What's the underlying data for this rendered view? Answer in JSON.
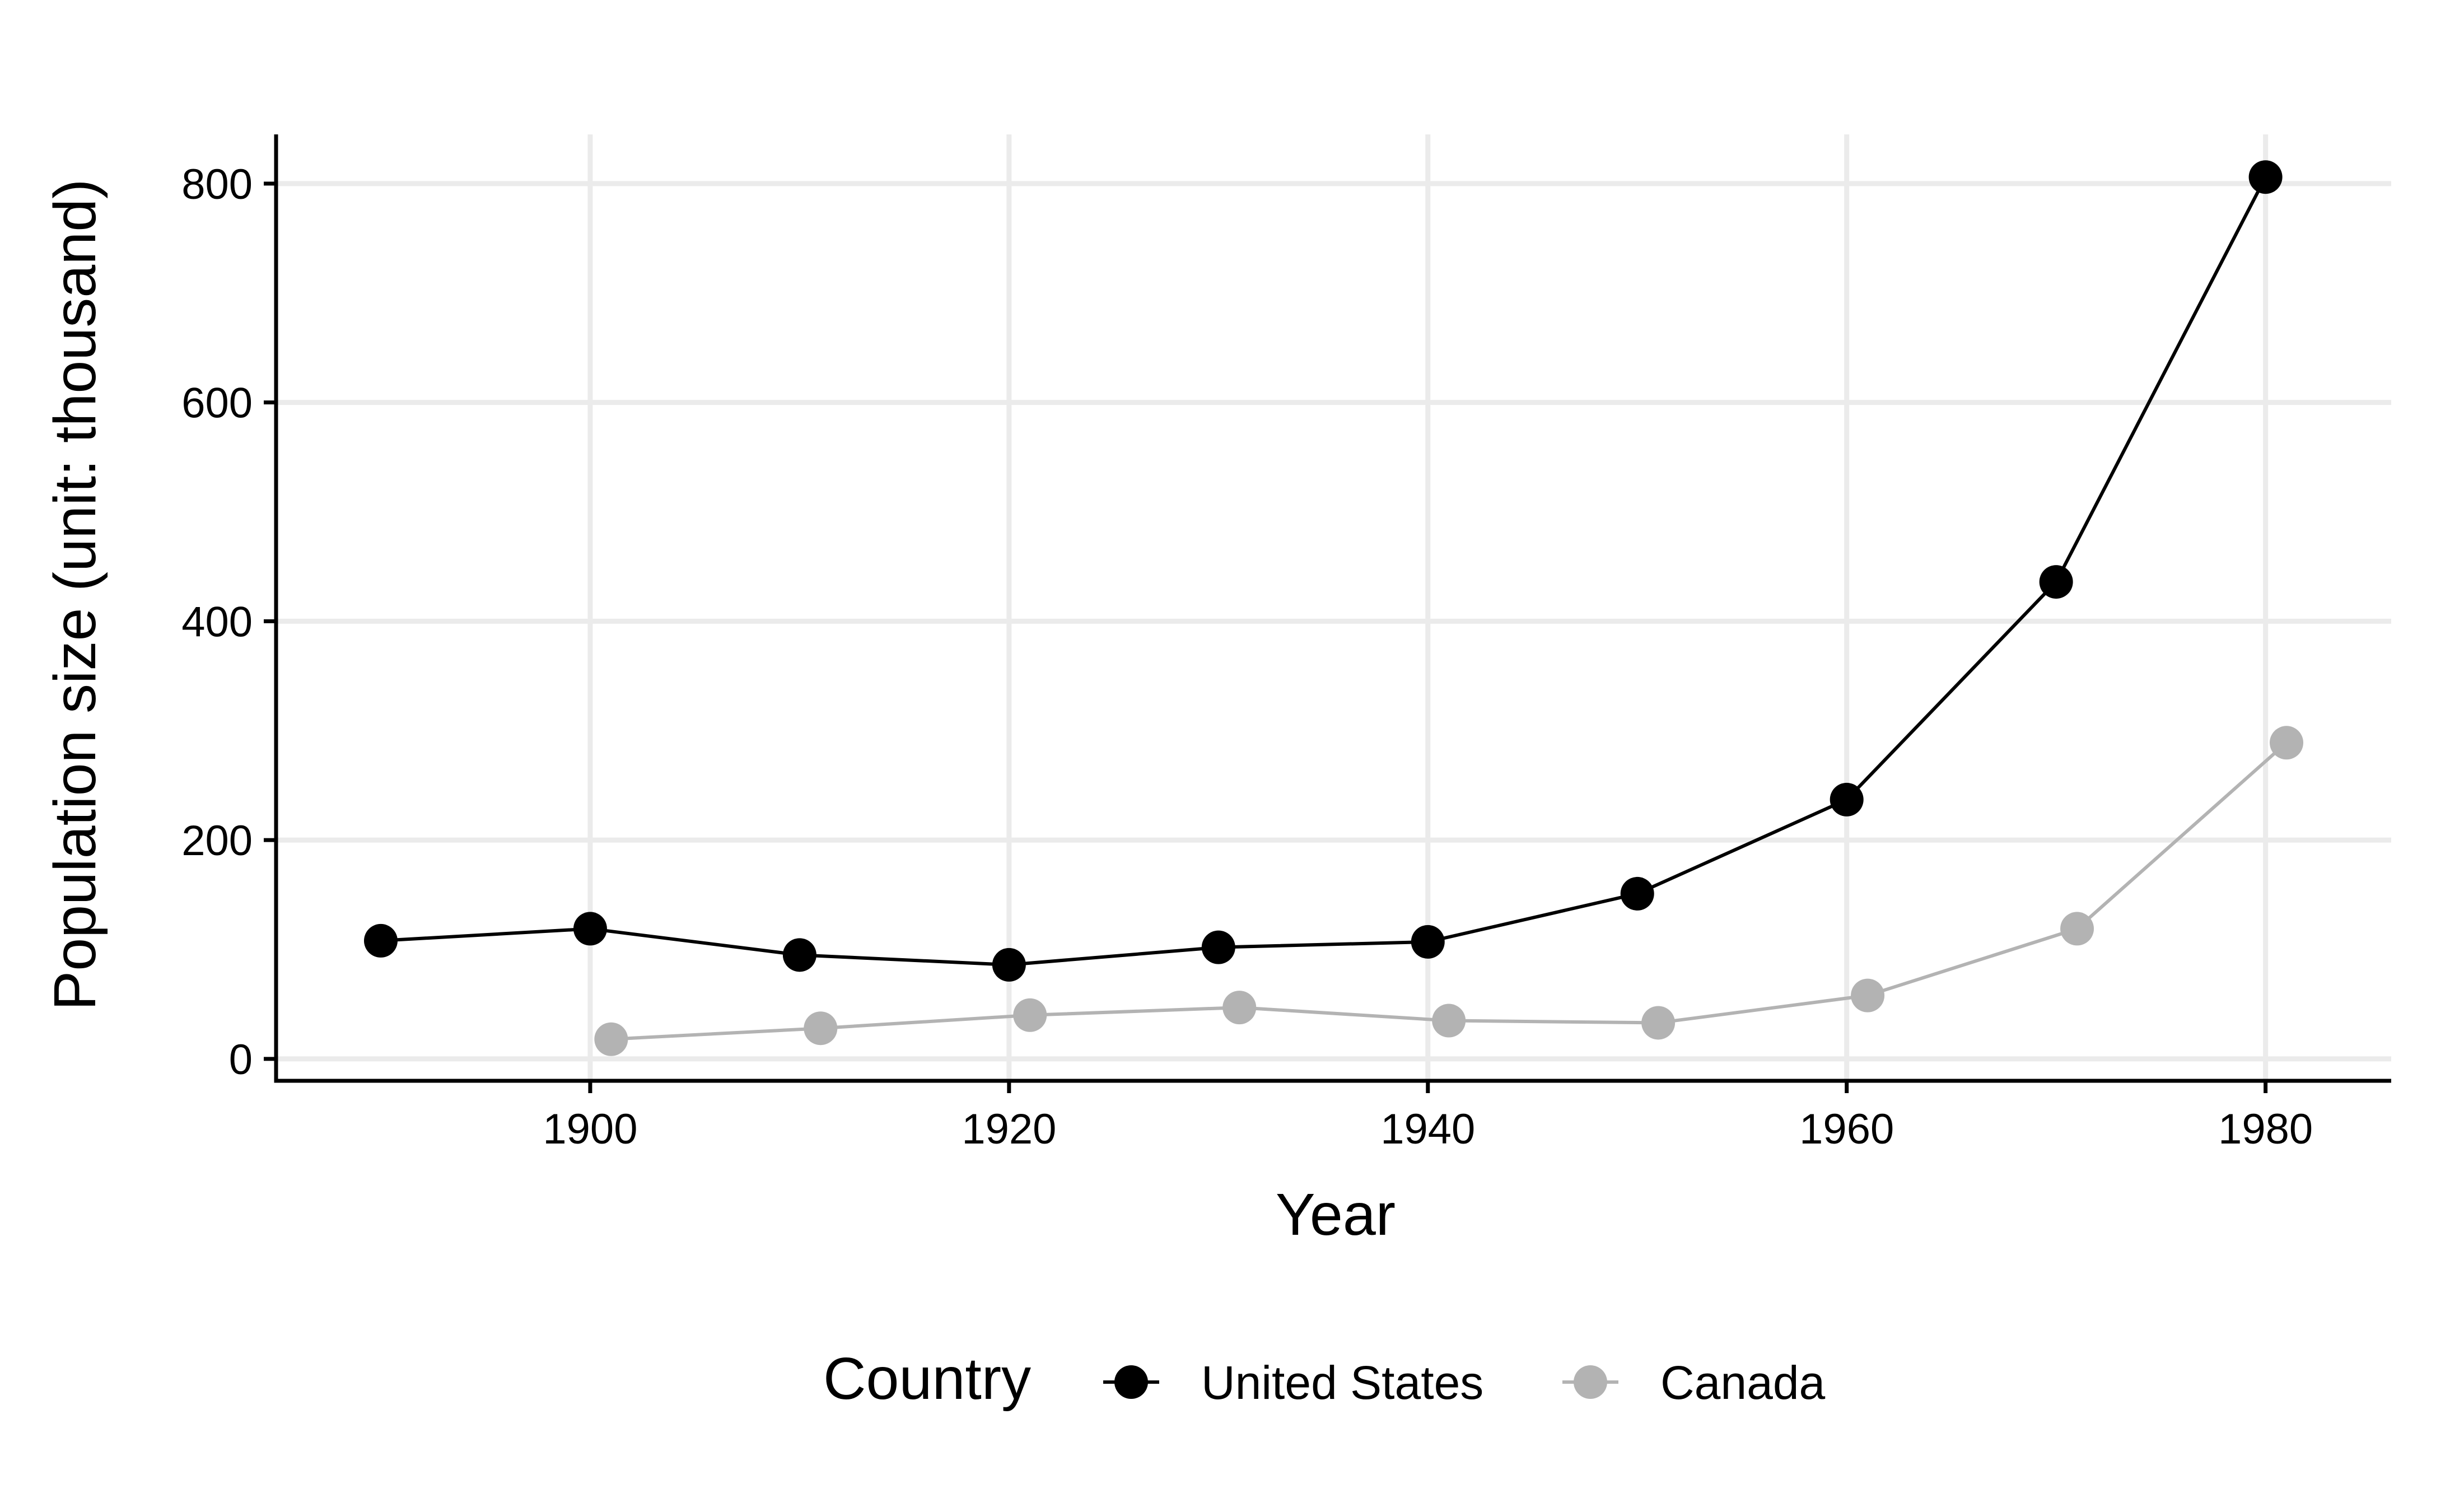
{
  "chart_data": {
    "type": "line",
    "title": "",
    "xlabel": "Year",
    "ylabel": "Population size (unit: thousand)",
    "xlim": [
      1885,
      1986
    ],
    "ylim": [
      -20,
      845
    ],
    "x_ticks": [
      1900,
      1920,
      1940,
      1960,
      1980
    ],
    "x_tick_labels": [
      "1900",
      "1920",
      "1940",
      "1960",
      "1980"
    ],
    "y_ticks": [
      0,
      200,
      400,
      600,
      800
    ],
    "y_tick_labels": [
      "0",
      "200",
      "400",
      "600",
      "800"
    ],
    "grid": true,
    "legend": {
      "title": "Country",
      "position": "bottom"
    },
    "series": [
      {
        "name": "United States",
        "color": "#000000",
        "points": [
          {
            "x": 1890,
            "y": 108
          },
          {
            "x": 1900,
            "y": 119
          },
          {
            "x": 1910,
            "y": 95
          },
          {
            "x": 1920,
            "y": 86
          },
          {
            "x": 1930,
            "y": 102
          },
          {
            "x": 1940,
            "y": 107
          },
          {
            "x": 1950,
            "y": 151
          },
          {
            "x": 1960,
            "y": 237
          },
          {
            "x": 1970,
            "y": 436
          },
          {
            "x": 1980,
            "y": 806
          }
        ]
      },
      {
        "name": "Canada",
        "color": "#b3b3b3",
        "points": [
          {
            "x": 1901,
            "y": 18
          },
          {
            "x": 1911,
            "y": 28
          },
          {
            "x": 1921,
            "y": 40
          },
          {
            "x": 1931,
            "y": 47
          },
          {
            "x": 1941,
            "y": 35
          },
          {
            "x": 1951,
            "y": 33
          },
          {
            "x": 1961,
            "y": 58
          },
          {
            "x": 1971,
            "y": 119
          },
          {
            "x": 1981,
            "y": 289
          }
        ]
      }
    ]
  }
}
